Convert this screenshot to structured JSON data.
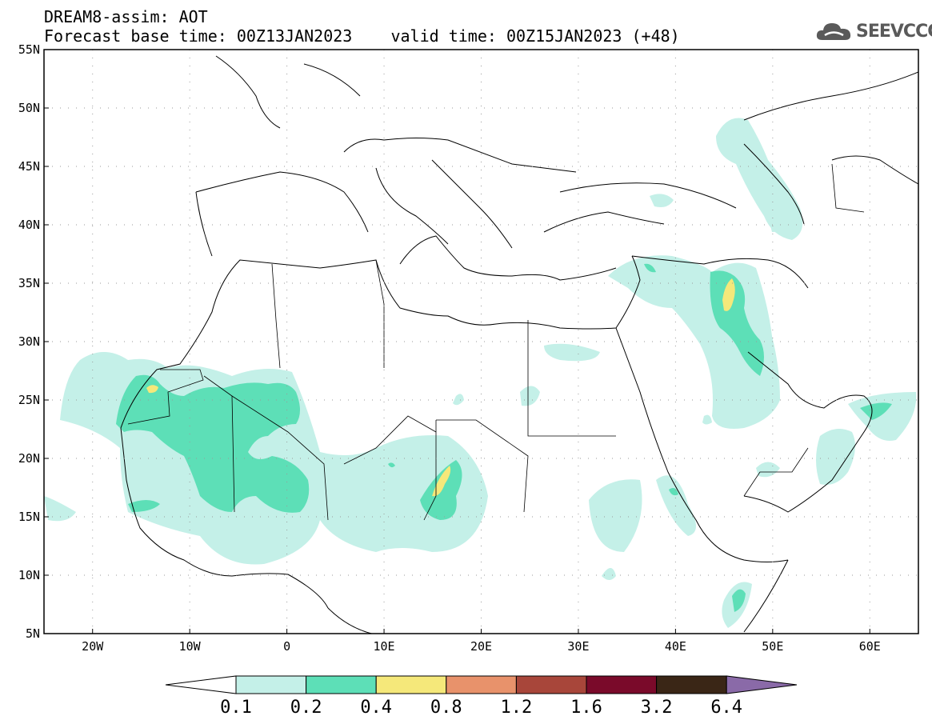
{
  "header": {
    "line1": "DREAM8-assim: AOT",
    "line2": "Forecast base time: 00Z13JAN2023    valid time: 00Z15JAN2023 (+48)"
  },
  "logo": {
    "text": "SEEVCCC",
    "icon": "cloud-icon"
  },
  "map": {
    "lon_range": [
      -25,
      65
    ],
    "lat_range": [
      5,
      55
    ],
    "lon_ticks": [
      {
        "value": -20,
        "label": "20W"
      },
      {
        "value": -10,
        "label": "10W"
      },
      {
        "value": 0,
        "label": "0"
      },
      {
        "value": 10,
        "label": "10E"
      },
      {
        "value": 20,
        "label": "20E"
      },
      {
        "value": 30,
        "label": "30E"
      },
      {
        "value": 40,
        "label": "40E"
      },
      {
        "value": 50,
        "label": "50E"
      },
      {
        "value": 60,
        "label": "60E"
      }
    ],
    "lat_ticks": [
      {
        "value": 55,
        "label": "55N"
      },
      {
        "value": 50,
        "label": "50N"
      },
      {
        "value": 45,
        "label": "45N"
      },
      {
        "value": 40,
        "label": "40N"
      },
      {
        "value": 35,
        "label": "35N"
      },
      {
        "value": 30,
        "label": "30N"
      },
      {
        "value": 25,
        "label": "25N"
      },
      {
        "value": 20,
        "label": "20N"
      },
      {
        "value": 15,
        "label": "15N"
      },
      {
        "value": 10,
        "label": "10N"
      },
      {
        "value": 5,
        "label": "5N"
      }
    ],
    "grid": "dotted"
  },
  "colorbar": {
    "levels": [
      "0.1",
      "0.2",
      "0.4",
      "0.8",
      "1.2",
      "1.6",
      "3.2",
      "6.4"
    ],
    "colors": [
      "#ffffff",
      "#c4f0e8",
      "#5ddfb7",
      "#f5e87a",
      "#e8926b",
      "#a8463a",
      "#7a0a2a",
      "#3a2616",
      "#8a6aa8"
    ]
  }
}
